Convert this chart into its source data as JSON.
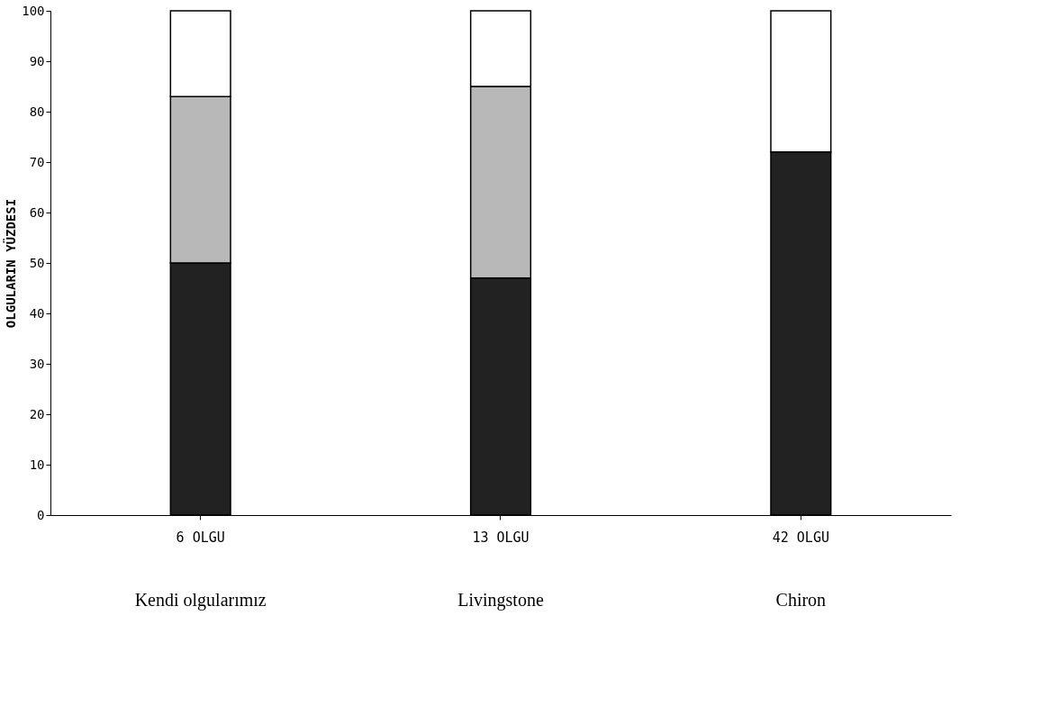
{
  "chart_data": {
    "type": "bar",
    "stacked": true,
    "ylabel": "OLGULARIN YÜZDESI",
    "categories": [
      "6 OLGU",
      "13 OLGU",
      "42 OLGU"
    ],
    "series": [
      {
        "color": "#222222",
        "values": [
          50,
          47,
          72
        ]
      },
      {
        "color": "#b8b8b8",
        "values": [
          33,
          38,
          0
        ]
      },
      {
        "color": "#ffffff",
        "values": [
          17,
          15,
          28
        ]
      }
    ],
    "ylim": [
      0,
      100
    ],
    "yticks": [
      0,
      10,
      20,
      30,
      40,
      50,
      60,
      70,
      80,
      90,
      100
    ],
    "grid": false,
    "annotations": [
      "Kendi olgularımız",
      "Livingstone",
      "Chiron"
    ]
  }
}
